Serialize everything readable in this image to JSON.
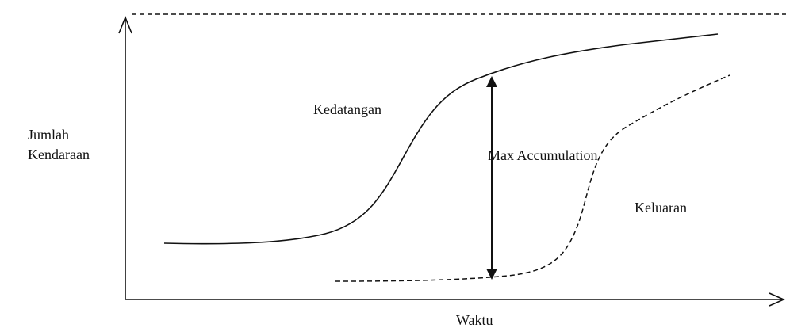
{
  "y_axis_label": [
    "Jumlah",
    "Kendaraan"
  ],
  "x_axis_label": "Waktu",
  "curves": {
    "arrival": "Kedatangan",
    "departure": "Keluaran"
  },
  "annotation": "Max Accumulation"
}
